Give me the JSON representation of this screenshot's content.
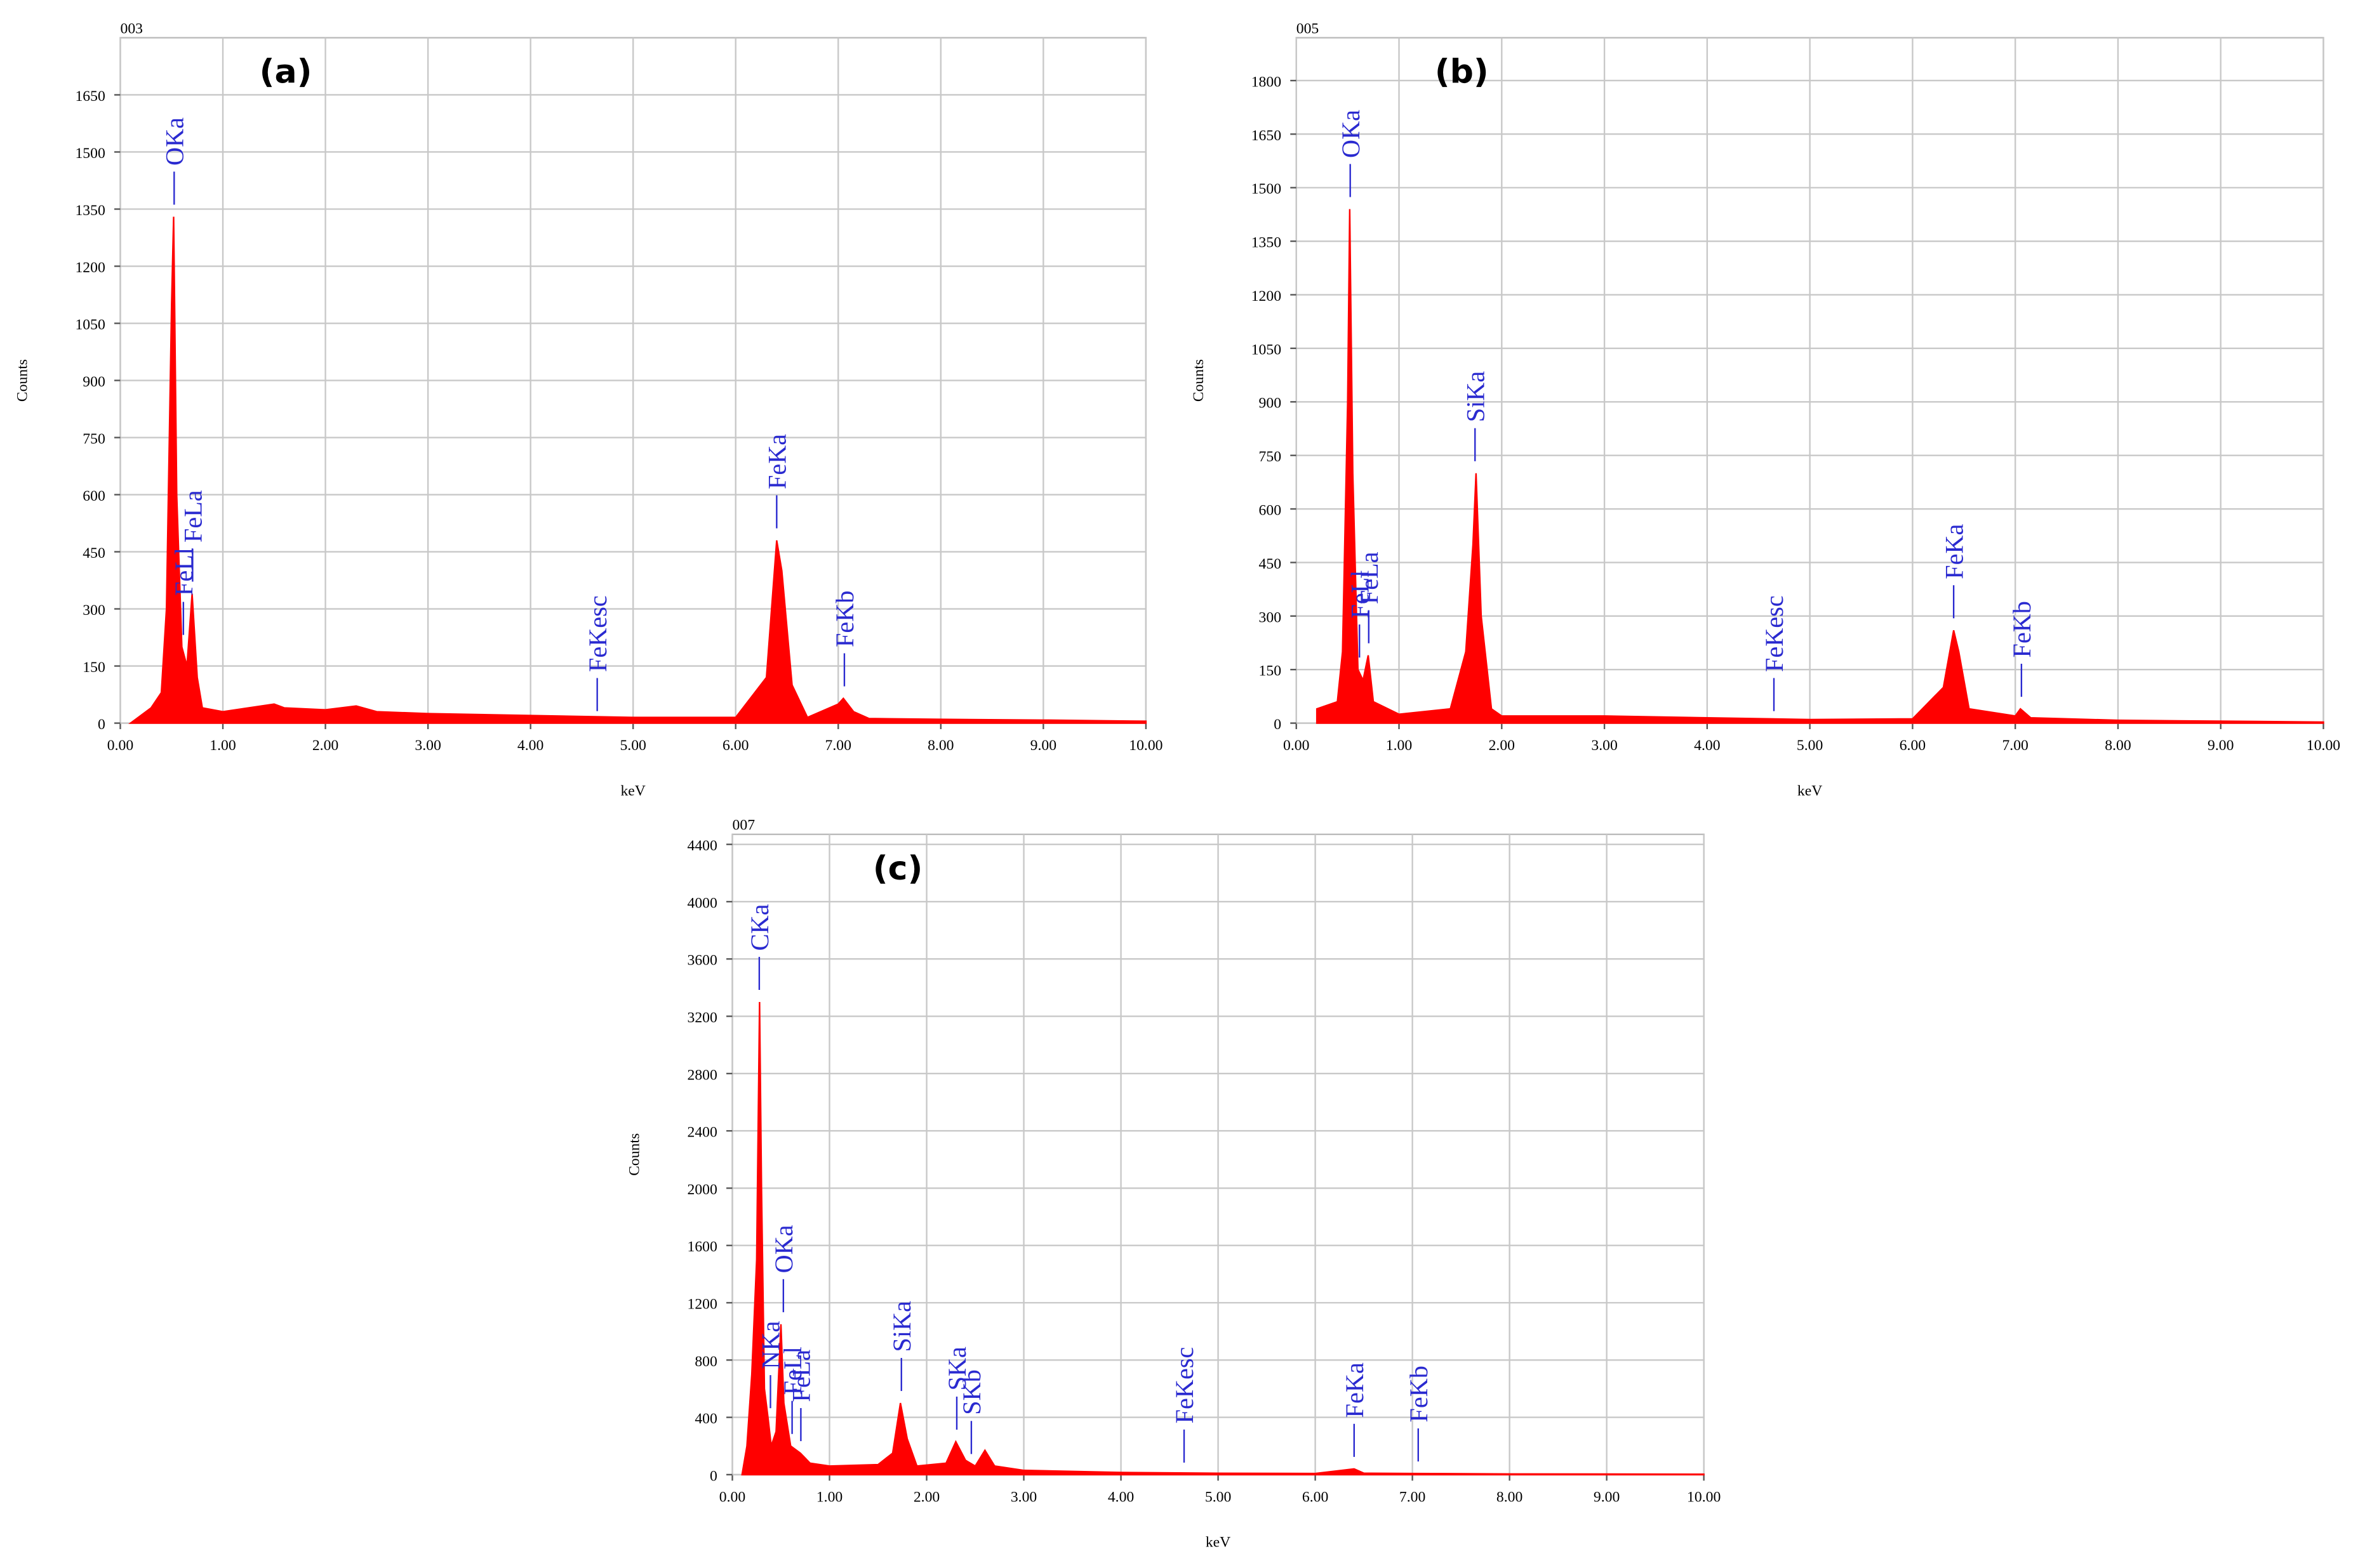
{
  "chart_data": [
    {
      "type": "spectrum",
      "title": "(a)",
      "subtitle": "003",
      "x_label": "keV",
      "y_label": "Counts",
      "color": "#ff0000",
      "grid": true,
      "xlim": [
        0,
        10
      ],
      "ylim": [
        0,
        1800
      ],
      "xticks": [
        {
          "value": 0,
          "label": "0.00"
        },
        {
          "value": 1,
          "label": "1.00"
        },
        {
          "value": 2,
          "label": "2.00"
        },
        {
          "value": 3,
          "label": "3.00"
        },
        {
          "value": 4,
          "label": "4.00"
        },
        {
          "value": 5,
          "label": "5.00"
        },
        {
          "value": 6,
          "label": "6.00"
        },
        {
          "value": 7,
          "label": "7.00"
        },
        {
          "value": 8,
          "label": "8.00"
        },
        {
          "value": 9,
          "label": "9.00"
        },
        {
          "value": 10,
          "label": "10.00"
        }
      ],
      "yticks": [
        0,
        150,
        300,
        450,
        600,
        750,
        900,
        1050,
        1200,
        1350,
        1500,
        1650
      ],
      "x": [
        0.1,
        0.2,
        0.3,
        0.4,
        0.45,
        0.5,
        0.52,
        0.55,
        0.6,
        0.65,
        0.7,
        0.75,
        0.8,
        1.0,
        1.5,
        1.6,
        2.0,
        2.3,
        2.5,
        3.0,
        4.0,
        5.0,
        6.0,
        6.3,
        6.4,
        6.45,
        6.55,
        6.7,
        7.0,
        7.05,
        7.15,
        7.3,
        8.0,
        9.0,
        10.0
      ],
      "values": [
        0,
        20,
        40,
        80,
        300,
        1100,
        1330,
        600,
        200,
        150,
        340,
        120,
        40,
        30,
        50,
        40,
        35,
        45,
        30,
        25,
        20,
        15,
        15,
        120,
        480,
        400,
        100,
        15,
        50,
        65,
        30,
        12,
        10,
        8,
        5
      ],
      "peaks": [
        {
          "text": "OKa",
          "x": 0.525
        },
        {
          "text": "FeLl",
          "x": 0.615
        },
        {
          "text": "FeLa",
          "x": 0.705
        },
        {
          "text": "FeKesc",
          "x": 4.65
        },
        {
          "text": "FeKa",
          "x": 6.4
        },
        {
          "text": "FeKb",
          "x": 7.06
        }
      ]
    },
    {
      "type": "spectrum",
      "title": "(b)",
      "subtitle": "005",
      "x_label": "keV",
      "y_label": "Counts",
      "color": "#ff0000",
      "grid": true,
      "xlim": [
        0,
        10
      ],
      "ylim": [
        0,
        1920
      ],
      "xticks": [
        {
          "value": 0,
          "label": "0.00"
        },
        {
          "value": 1,
          "label": "1.00"
        },
        {
          "value": 2,
          "label": "2.00"
        },
        {
          "value": 3,
          "label": "3.00"
        },
        {
          "value": 4,
          "label": "4.00"
        },
        {
          "value": 5,
          "label": "5.00"
        },
        {
          "value": 6,
          "label": "6.00"
        },
        {
          "value": 7,
          "label": "7.00"
        },
        {
          "value": 8,
          "label": "8.00"
        },
        {
          "value": 9,
          "label": "9.00"
        },
        {
          "value": 10,
          "label": "10.00"
        }
      ],
      "yticks": [
        0,
        150,
        300,
        450,
        600,
        750,
        900,
        1050,
        1200,
        1350,
        1500,
        1650,
        1800
      ],
      "x": [
        0.2,
        0.4,
        0.45,
        0.5,
        0.52,
        0.55,
        0.6,
        0.65,
        0.7,
        0.75,
        1.0,
        1.5,
        1.65,
        1.72,
        1.75,
        1.8,
        1.9,
        2.0,
        3.0,
        4.0,
        5.0,
        6.0,
        6.3,
        6.4,
        6.45,
        6.55,
        7.0,
        7.05,
        7.15,
        8.0,
        10.0
      ],
      "values": [
        40,
        60,
        200,
        900,
        1440,
        700,
        150,
        120,
        190,
        60,
        25,
        40,
        200,
        500,
        700,
        300,
        40,
        20,
        20,
        15,
        10,
        12,
        100,
        260,
        200,
        40,
        20,
        40,
        15,
        8,
        3
      ],
      "peaks": [
        {
          "text": "OKa",
          "x": 0.525
        },
        {
          "text": "FeLl",
          "x": 0.615
        },
        {
          "text": "FeLa",
          "x": 0.705
        },
        {
          "text": "SiKa",
          "x": 1.74
        },
        {
          "text": "FeKesc",
          "x": 4.65
        },
        {
          "text": "FeKa",
          "x": 6.4
        },
        {
          "text": "FeKb",
          "x": 7.06
        }
      ]
    },
    {
      "type": "spectrum",
      "title": "(c)",
      "subtitle": "007",
      "x_label": "keV",
      "y_label": "Counts",
      "color": "#ff0000",
      "grid": true,
      "xlim": [
        0,
        10
      ],
      "ylim": [
        0,
        4470
      ],
      "xticks": [
        {
          "value": 0,
          "label": "0.00"
        },
        {
          "value": 1,
          "label": "1.00"
        },
        {
          "value": 2,
          "label": "2.00"
        },
        {
          "value": 3,
          "label": "3.00"
        },
        {
          "value": 4,
          "label": "4.00"
        },
        {
          "value": 5,
          "label": "5.00"
        },
        {
          "value": 6,
          "label": "6.00"
        },
        {
          "value": 7,
          "label": "7.00"
        },
        {
          "value": 8,
          "label": "8.00"
        },
        {
          "value": 9,
          "label": "9.00"
        },
        {
          "value": 10,
          "label": "10.00"
        }
      ],
      "yticks": [
        0,
        400,
        800,
        1200,
        1600,
        2000,
        2400,
        2800,
        3200,
        3600,
        4000,
        4400
      ],
      "x": [
        0.1,
        0.15,
        0.2,
        0.25,
        0.28,
        0.3,
        0.33,
        0.37,
        0.4,
        0.45,
        0.5,
        0.53,
        0.6,
        0.7,
        0.8,
        1.0,
        1.5,
        1.65,
        1.73,
        1.8,
        1.9,
        2.2,
        2.3,
        2.4,
        2.5,
        2.6,
        2.7,
        3.0,
        4.0,
        5.0,
        6.0,
        6.4,
        6.5,
        7.0,
        8.0,
        10.0
      ],
      "values": [
        0,
        200,
        700,
        1500,
        3300,
        2000,
        600,
        380,
        200,
        300,
        1050,
        500,
        200,
        150,
        80,
        60,
        70,
        150,
        500,
        250,
        60,
        80,
        230,
        100,
        60,
        170,
        60,
        30,
        15,
        10,
        8,
        40,
        10,
        8,
        5,
        3
      ],
      "peaks": [
        {
          "text": "CKa",
          "x": 0.277
        },
        {
          "text": "NKa",
          "x": 0.392
        },
        {
          "text": "OKa",
          "x": 0.525
        },
        {
          "text": "FeLl",
          "x": 0.615
        },
        {
          "text": "FeLa",
          "x": 0.705
        },
        {
          "text": "SiKa",
          "x": 1.74
        },
        {
          "text": "SKa",
          "x": 2.31
        },
        {
          "text": "SKb",
          "x": 2.46
        },
        {
          "text": "FeKesc",
          "x": 4.65
        },
        {
          "text": "FeKa",
          "x": 6.4
        },
        {
          "text": "FeKb",
          "x": 7.06
        }
      ]
    }
  ]
}
